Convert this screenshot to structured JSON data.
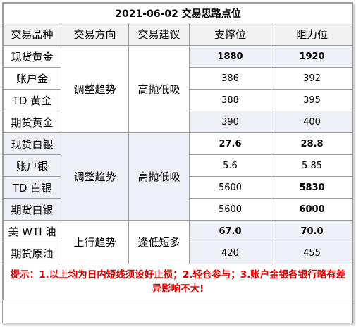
{
  "title": "2021-06-02 交易思路点位",
  "headers": {
    "product": "交易品种",
    "direction": "交易方向",
    "suggestion": "交易建议",
    "support": "支撑位",
    "resistance": "阻力位"
  },
  "groups": [
    {
      "direction": "调整趋势",
      "suggestion": "高抛低吸",
      "rows": [
        {
          "name": "现货黄金",
          "support": "1880",
          "resistance": "1920"
        },
        {
          "name": "账户金",
          "support": "386",
          "resistance": "392"
        },
        {
          "name": "TD 黄金",
          "support": "388",
          "resistance": "395"
        },
        {
          "name": "期货黄金",
          "support": "390",
          "resistance": "400"
        }
      ]
    },
    {
      "direction": "调整趋势",
      "suggestion": "高抛低吸",
      "rows": [
        {
          "name": "现货白银",
          "support": "27.6",
          "resistance": "28.8"
        },
        {
          "name": "账户银",
          "support": "5.6",
          "resistance": "5.85"
        },
        {
          "name": "TD 白银",
          "support": "5600",
          "resistance": "5830"
        },
        {
          "name": "期货白银",
          "support": "5600",
          "resistance": "6000"
        }
      ]
    },
    {
      "direction": "上行趋势",
      "suggestion": "逢低短多",
      "rows": [
        {
          "name": "美 WTI 油",
          "support": "67.0",
          "resistance": "70.0"
        },
        {
          "name": "期货原油",
          "support": "420",
          "resistance": "455"
        }
      ]
    }
  ],
  "tip": "提示：1.以上均为日内短线须设好止损；2.轻仓参与；3.账户金银各银行略有差异影响不大!",
  "colors": {
    "border": "#9e9e9e",
    "header_bg": "#f2f2f2",
    "shade_bg": "#edf0f7",
    "tip_text": "#e00000"
  }
}
